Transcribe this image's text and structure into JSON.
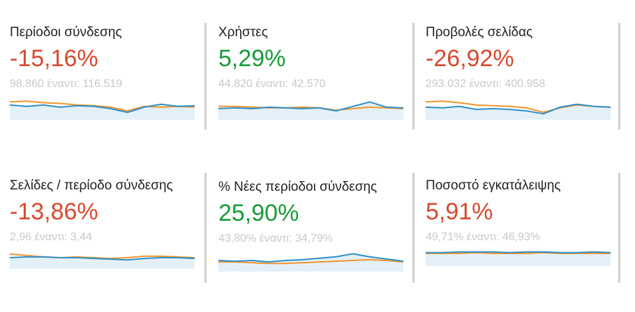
{
  "colors": {
    "negative": "#d64a2e",
    "positive": "#1a9a3a",
    "current_line": "#2f8fc8",
    "previous_line": "#f0952b",
    "area_fill": "#e4f0f8"
  },
  "cards": [
    {
      "title": "Περίοδοι σύνδεσης",
      "change": "-15,16%",
      "trend": "negative",
      "comparison": "98.860 έναντι: 116.519",
      "current": [
        60,
        58,
        60,
        57,
        59,
        58,
        55,
        50,
        57,
        61,
        58,
        59
      ],
      "previous": [
        64,
        65,
        63,
        62,
        60,
        59,
        57,
        52,
        58,
        57,
        58,
        57
      ]
    },
    {
      "title": "Χρήστες",
      "change": "5,29%",
      "trend": "positive",
      "comparison": "44.820 έναντι: 42.570",
      "current": [
        55,
        56,
        55,
        57,
        56,
        55,
        56,
        52,
        58,
        64,
        57,
        56
      ],
      "previous": [
        58,
        58,
        57,
        56,
        56,
        57,
        56,
        53,
        55,
        57,
        56,
        55
      ]
    },
    {
      "title": "Προβολές σελίδας",
      "change": "-26,92%",
      "trend": "negative",
      "comparison": "293.032 έναντι: 400.958",
      "current": [
        57,
        56,
        58,
        54,
        55,
        54,
        52,
        48,
        57,
        61,
        58,
        57
      ],
      "previous": [
        64,
        65,
        63,
        60,
        59,
        58,
        56,
        50,
        56,
        60,
        58,
        57
      ]
    },
    {
      "title": "Σελίδες / περίοδο σύνδεσης",
      "change": "-13,86%",
      "trend": "negative",
      "comparison": "2,96 έναντι: 3,44",
      "current": [
        55,
        56,
        56,
        55,
        55,
        54,
        53,
        52,
        54,
        55,
        55,
        54
      ],
      "previous": [
        60,
        58,
        56,
        55,
        56,
        55,
        54,
        55,
        57,
        57,
        56,
        55
      ]
    },
    {
      "title": "% Νέες περίοδοι σύνδεσης",
      "change": "25,90%",
      "trend": "positive",
      "comparison": "43,80% έναντι: 34,79%",
      "current": [
        55,
        54,
        55,
        53,
        55,
        56,
        58,
        60,
        64,
        60,
        57,
        54
      ],
      "previous": [
        53,
        53,
        52,
        51,
        51,
        52,
        53,
        54,
        55,
        56,
        55,
        53
      ]
    },
    {
      "title": "Ποσοστό εγκατάλειψης",
      "change": "5,91%",
      "trend": "negative",
      "comparison": "49,71% έναντι: 46,93%",
      "current": [
        58,
        58,
        59,
        59,
        59,
        58,
        59,
        59,
        58,
        58,
        59,
        58
      ],
      "previous": [
        57,
        57,
        57,
        58,
        57,
        57,
        57,
        58,
        57,
        57,
        57,
        57
      ]
    }
  ]
}
